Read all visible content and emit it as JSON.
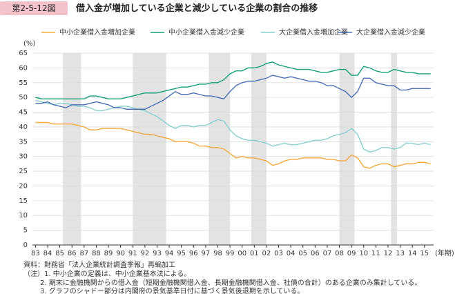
{
  "chart_data": {
    "type": "line",
    "figure_number": "第2-5-12図",
    "title": "借入金が増加している企業と減少している企業の割合の推移",
    "y_label": "(%)",
    "x_label": "(年期)",
    "source": "資料：財務省「法人企業統計調査季報」再編加工",
    "notes": [
      "（注）1. 中小企業の定義は、中小企業基本法による。",
      "2. 期末に金融機関からの借入金（短期金融機関借入金、長期金融機関借入金、社債の合計）のある企業のみ集計している。",
      "3. グラフのシャドー部分は内閣府の景気基準日付に基づく景気後退期を示している。"
    ],
    "xlim": [
      1982.75,
      2015.75
    ],
    "ylim": [
      0,
      65
    ],
    "yticks": [
      0,
      5,
      10,
      15,
      20,
      25,
      30,
      35,
      40,
      45,
      50,
      55,
      60,
      65
    ],
    "xticks": [
      {
        "value": 1983,
        "label": "83"
      },
      {
        "value": 1984,
        "label": "84"
      },
      {
        "value": 1985,
        "label": "85"
      },
      {
        "value": 1986,
        "label": "86"
      },
      {
        "value": 1987,
        "label": "87"
      },
      {
        "value": 1988,
        "label": "88"
      },
      {
        "value": 1989,
        "label": "89"
      },
      {
        "value": 1990,
        "label": "90"
      },
      {
        "value": 1991,
        "label": "91"
      },
      {
        "value": 1992,
        "label": "92"
      },
      {
        "value": 1993,
        "label": "93"
      },
      {
        "value": 1994,
        "label": "94"
      },
      {
        "value": 1995,
        "label": "95"
      },
      {
        "value": 1996,
        "label": "96"
      },
      {
        "value": 1997,
        "label": "97"
      },
      {
        "value": 1998,
        "label": "98"
      },
      {
        "value": 1999,
        "label": "99"
      },
      {
        "value": 2000,
        "label": "00"
      },
      {
        "value": 2001,
        "label": "01"
      },
      {
        "value": 2002,
        "label": "02"
      },
      {
        "value": 2003,
        "label": "03"
      },
      {
        "value": 2004,
        "label": "04"
      },
      {
        "value": 2005,
        "label": "05"
      },
      {
        "value": 2006,
        "label": "06"
      },
      {
        "value": 2007,
        "label": "07"
      },
      {
        "value": 2008,
        "label": "08"
      },
      {
        "value": 2009,
        "label": "09"
      },
      {
        "value": 2010,
        "label": "10"
      },
      {
        "value": 2011,
        "label": "11"
      },
      {
        "value": 2012,
        "label": "12"
      },
      {
        "value": 2013,
        "label": "13"
      },
      {
        "value": 2014,
        "label": "14"
      },
      {
        "value": 2015,
        "label": "15"
      }
    ],
    "grid": true,
    "shaded_periods": [
      [
        1985.25,
        1986.75
      ],
      [
        1991.0,
        1993.75
      ],
      [
        1997.25,
        1999.0
      ],
      [
        2000.75,
        2002.0
      ],
      [
        2008.0,
        2009.25
      ],
      [
        2012.25,
        2012.75
      ]
    ],
    "x": [
      1983,
      1983.5,
      1984,
      1984.5,
      1985,
      1985.5,
      1986,
      1986.5,
      1987,
      1987.5,
      1988,
      1988.5,
      1989,
      1989.5,
      1990,
      1990.5,
      1991,
      1991.5,
      1992,
      1992.5,
      1993,
      1993.5,
      1994,
      1994.5,
      1995,
      1995.5,
      1996,
      1996.5,
      1997,
      1997.5,
      1998,
      1998.5,
      1999,
      1999.5,
      2000,
      2000.5,
      2001,
      2001.5,
      2002,
      2002.5,
      2003,
      2003.5,
      2004,
      2004.5,
      2005,
      2005.5,
      2006,
      2006.5,
      2007,
      2007.5,
      2008,
      2008.5,
      2009,
      2009.5,
      2010,
      2010.5,
      2011,
      2011.5,
      2012,
      2012.5,
      2013,
      2013.5,
      2014,
      2014.5,
      2015,
      2015.5
    ],
    "series": [
      {
        "name": "中小企業借入金増加企業",
        "color": "#f5a83a",
        "values": [
          41.5,
          41.5,
          41.5,
          41,
          41,
          41,
          41,
          40.5,
          40,
          39,
          39,
          39.5,
          39.5,
          39.5,
          39.5,
          39,
          38.5,
          38,
          37.5,
          37.5,
          37,
          36.5,
          36,
          35,
          35,
          35,
          34.5,
          33.5,
          33.5,
          33,
          33,
          32.5,
          31,
          29.5,
          30,
          29.5,
          29.5,
          29,
          28.5,
          27,
          27.5,
          28.5,
          29,
          29,
          29.5,
          29.5,
          29.5,
          29.5,
          29,
          29,
          28.5,
          28.5,
          30.5,
          29.5,
          26.5,
          26,
          27,
          27.5,
          27.5,
          26.5,
          27,
          27.5,
          27.5,
          28,
          28,
          27.5
        ]
      },
      {
        "name": "中小企業借入金減少企業",
        "color": "#12a077",
        "values": [
          50,
          49.5,
          49.5,
          49.5,
          49.5,
          49.5,
          49.5,
          49.5,
          49.5,
          50.5,
          50.5,
          50,
          49.5,
          49.5,
          49.5,
          50,
          50.5,
          51,
          51.5,
          51.5,
          51.5,
          52,
          52.5,
          53,
          53.5,
          53.5,
          54,
          54.5,
          54.5,
          55,
          55,
          56,
          58,
          59,
          59,
          60,
          60,
          60.5,
          61.5,
          62,
          61,
          60.5,
          60,
          59.5,
          59.5,
          59.5,
          59,
          58.5,
          58.5,
          59,
          59.5,
          59.5,
          57.5,
          57.5,
          60.5,
          60,
          59,
          58.5,
          58.5,
          59.5,
          59,
          58.5,
          58.5,
          58,
          58,
          58
        ]
      },
      {
        "name": "大企業借入金増加企業",
        "color": "#86d0cf",
        "values": [
          49,
          48.5,
          48,
          47.5,
          48,
          48,
          47.5,
          47,
          47,
          46.5,
          45.5,
          45.5,
          46,
          46.5,
          47,
          47,
          46.5,
          46,
          45.5,
          44.5,
          43.5,
          42,
          40.5,
          39.5,
          40.5,
          40.5,
          40,
          40.5,
          40.5,
          41.5,
          42.5,
          42,
          39,
          37,
          36,
          35.5,
          35.5,
          35,
          34.5,
          33.5,
          34,
          34.5,
          34,
          34,
          34.5,
          35,
          35.5,
          35.5,
          36,
          37,
          37.5,
          38,
          39.5,
          37.5,
          32.5,
          31.5,
          32,
          33,
          33,
          32.5,
          33,
          34.5,
          34.5,
          34,
          34.5,
          34
        ]
      },
      {
        "name": "大企業借入金減少企業",
        "color": "#4a6fb5",
        "values": [
          48,
          48,
          48.5,
          47.5,
          47,
          46.5,
          47.5,
          47.5,
          47.5,
          48,
          48.5,
          48,
          47.5,
          46.5,
          46.5,
          46,
          46,
          46,
          46,
          47,
          48,
          49,
          50.5,
          52,
          51,
          51,
          51.5,
          51,
          50.5,
          50.5,
          50,
          49.5,
          52,
          54,
          55,
          55.5,
          55.5,
          56,
          56.5,
          57.5,
          57,
          56.5,
          57,
          56.5,
          56,
          55.5,
          55.5,
          55,
          54,
          54,
          53,
          52,
          50,
          52,
          56.5,
          56.5,
          55,
          54.5,
          54,
          54,
          52.5,
          52.5,
          53,
          53,
          53,
          53
        ]
      }
    ]
  }
}
